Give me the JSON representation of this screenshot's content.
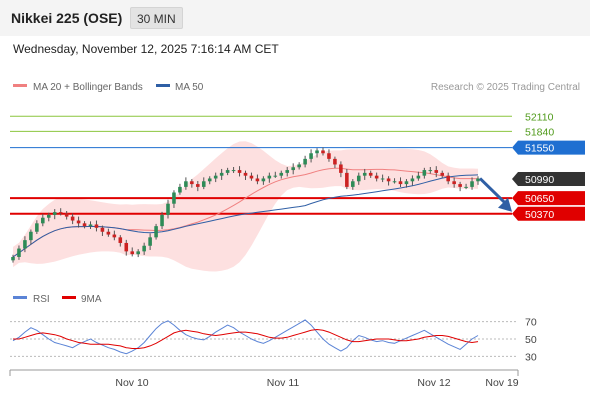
{
  "header": {
    "title": "Nikkei 225 (OSE)",
    "timeframe": "30 MIN",
    "datetime": "Wednesday, November 12, 2025 7:16:14 AM CET"
  },
  "legend": {
    "main": [
      {
        "label": "MA 20 + Bollinger Bands",
        "color": "#f08080"
      },
      {
        "label": "MA 50",
        "color": "#2f5fa5"
      }
    ],
    "rsi": [
      {
        "label": "RSI",
        "color": "#5b84d6"
      },
      {
        "label": "9MA",
        "color": "#e00000"
      }
    ]
  },
  "credit": "Research © 2025 Trading Central",
  "colors": {
    "resistance_green": "#8cc63f",
    "level_blue": "#1f6fd1",
    "support_red": "#e00000",
    "last_price": "#333333",
    "arrow": "#2f5fa5",
    "bull_candle": "#2e8b57",
    "bear_candle": "#cc2222",
    "band_fill": "#fde0e0"
  },
  "chart_data": [
    {
      "type": "candlestick",
      "title": "Nikkei 225 (OSE)",
      "ylim": [
        49100,
        52400
      ],
      "x_ticks": [
        "Nov 10",
        "Nov 11",
        "Nov 12",
        "Nov 19"
      ],
      "levels": [
        {
          "value": 52110,
          "label": "52110",
          "kind": "resistance"
        },
        {
          "value": 51840,
          "label": "51840",
          "kind": "resistance"
        },
        {
          "value": 51550,
          "label": "51550",
          "kind": "pivot"
        },
        {
          "value": 50990,
          "label": "50990",
          "kind": "last"
        },
        {
          "value": 50650,
          "label": "50650",
          "kind": "support"
        },
        {
          "value": 50370,
          "label": "50370",
          "kind": "support"
        }
      ],
      "close_series": [
        49600,
        49750,
        49900,
        50050,
        50200,
        50300,
        50350,
        50400,
        50380,
        50320,
        50250,
        50200,
        50150,
        50180,
        50120,
        50050,
        50000,
        49950,
        49850,
        49700,
        49650,
        49700,
        49800,
        49950,
        50150,
        50350,
        50550,
        50750,
        50850,
        50950,
        50900,
        50850,
        50950,
        51000,
        51050,
        51100,
        51150,
        51150,
        51100,
        51050,
        51000,
        50950,
        51000,
        51050,
        51050,
        51100,
        51150,
        51200,
        51250,
        51350,
        51450,
        51500,
        51450,
        51350,
        51250,
        51100,
        50850,
        50950,
        51050,
        51100,
        51050,
        51000,
        51000,
        50950,
        50950,
        50900,
        50950,
        51000,
        51050,
        51150,
        51150,
        51100,
        51050,
        50950,
        50900,
        50850,
        50850,
        50950,
        51000
      ]
    },
    {
      "type": "line",
      "series_names": [
        "RSI",
        "9MA"
      ],
      "y_ticks": [
        70,
        50,
        30
      ],
      "ylim": [
        20,
        80
      ],
      "rsi": [
        48,
        52,
        58,
        63,
        60,
        55,
        50,
        46,
        44,
        42,
        40,
        44,
        47,
        50,
        46,
        43,
        40,
        38,
        35,
        33,
        36,
        40,
        46,
        54,
        62,
        68,
        71,
        66,
        60,
        55,
        52,
        50,
        49,
        53,
        58,
        62,
        66,
        63,
        58,
        54,
        50,
        47,
        45,
        48,
        52,
        56,
        60,
        64,
        68,
        72,
        66,
        58,
        50,
        44,
        40,
        36,
        40,
        48,
        54,
        52,
        49,
        47,
        48,
        46,
        45,
        48,
        51,
        54,
        57,
        60,
        56,
        52,
        48,
        44,
        41,
        38,
        44,
        50,
        54
      ],
      "ma9": [
        50,
        50,
        52,
        54,
        56,
        57,
        56,
        55,
        53,
        50,
        48,
        46,
        45,
        44,
        44,
        44,
        44,
        43,
        42,
        40,
        39,
        39,
        40,
        42,
        45,
        49,
        53,
        57,
        59,
        60,
        59,
        58,
        56,
        55,
        54,
        55,
        56,
        57,
        58,
        58,
        57,
        56,
        54,
        52,
        51,
        51,
        52,
        54,
        56,
        58,
        60,
        61,
        60,
        58,
        55,
        52,
        49,
        47,
        47,
        48,
        49,
        50,
        50,
        50,
        49,
        48,
        48,
        49,
        50,
        52,
        53,
        54,
        54,
        53,
        51,
        49,
        47,
        46,
        47
      ]
    }
  ]
}
